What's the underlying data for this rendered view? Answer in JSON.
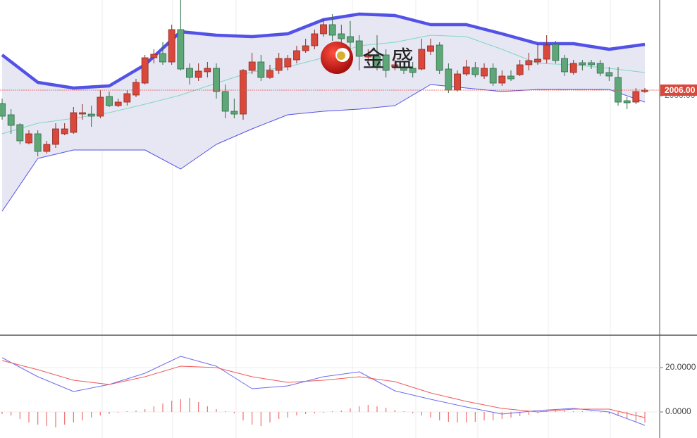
{
  "chart_data": [
    {
      "type": "candlestick",
      "up_color": "#d9483b",
      "down_color": "#5ea778",
      "up_border": "#8a2a22",
      "down_border": "#2f6b45",
      "open": [
        1991.75,
        1979.75,
        1969.25,
        1949.75,
        1959.5,
        1940.75,
        1948.25,
        1959.5,
        1961,
        1980.5,
        1980.5,
        1978.25,
        1999.25,
        1989.5,
        1993.25,
        2000.75,
        2013.5,
        2040.5,
        2045,
        2036,
        2070.5,
        2029.25,
        2019.5,
        2025.5,
        2029.25,
        2004.5,
        1983.5,
        1980.5,
        2027,
        2036,
        2019.5,
        2027,
        2030.75,
        2038.25,
        2048,
        2053.25,
        2066,
        2075.75,
        2066,
        2063,
        2058.5,
        2041.25,
        2042,
        2043.5,
        2030.75,
        2030.75,
        2029.25,
        2028.5,
        2047.25,
        2054,
        2028.5,
        2006,
        2023.25,
        2030,
        2021,
        2029.25,
        2013.5,
        2021,
        2022.5,
        2033,
        2036,
        2039,
        2054.75,
        2039.75,
        2024.75,
        2035.25,
        2035.25,
        2034.5,
        2024.75,
        2019.5,
        1994.75,
        1993.25,
        2004.5
      ],
      "high": [
        1997,
        1985.75,
        1970.75,
        1963.25,
        1963.25,
        1952,
        1970.75,
        1970.75,
        1988,
        1991,
        1989.5,
        2006,
        2004.5,
        1997,
        2006,
        2018,
        2043.5,
        2049.5,
        2057,
        2075.75,
        2102,
        2034.5,
        2034.5,
        2036,
        2034.5,
        2012,
        1997,
        2028.5,
        2045.75,
        2043.5,
        2033,
        2045.75,
        2043.5,
        2053.25,
        2060.75,
        2070.5,
        2081,
        2087,
        2075.75,
        2079.5,
        2064.5,
        2049.5,
        2064.5,
        2049.5,
        2038.25,
        2036,
        2036,
        2060.75,
        2060.75,
        2057,
        2034.5,
        2027,
        2038.25,
        2036,
        2034.5,
        2034.5,
        2027,
        2027,
        2038.25,
        2045.75,
        2055.5,
        2064.5,
        2058.5,
        2043.5,
        2038.25,
        2038.25,
        2038.25,
        2038.25,
        2030.75,
        2030.75,
        1998.5,
        2008.25,
        2008.25
      ],
      "low": [
        1974.5,
        1959.5,
        1948.25,
        1948.25,
        1935.5,
        1938.5,
        1944.5,
        1958,
        1959.5,
        1974.5,
        1967,
        1976,
        1988,
        1988,
        1989.5,
        1998.5,
        2012,
        2034.5,
        2033,
        2033,
        2027,
        2012,
        2015.75,
        2019.5,
        1997,
        1976,
        1976,
        1974.5,
        2023.25,
        2015.75,
        2018,
        2023.25,
        2027,
        2034.5,
        2045.75,
        2049.5,
        2063,
        2058.5,
        2053.25,
        2049.5,
        2027,
        2034.5,
        2027,
        2019.5,
        2027,
        2023.25,
        2019.5,
        2027,
        2043.5,
        2023.25,
        2003,
        2004.5,
        2021,
        2019.5,
        2018,
        2010.5,
        2010.5,
        2015.75,
        2021,
        2027,
        2033,
        2034.5,
        2034.5,
        2021,
        2022.5,
        2027,
        2028.5,
        2021,
        2015.75,
        1989.5,
        1985.75,
        1991,
        2003
      ],
      "close": [
        1978.25,
        1968.5,
        1952,
        1959.5,
        1940.75,
        1948.25,
        1964.75,
        1964.75,
        1982,
        1982,
        1978.25,
        1998.5,
        1989.5,
        1993.25,
        2002.25,
        2014.25,
        2040.5,
        2044.25,
        2036,
        2070.5,
        2028.5,
        2019.5,
        2026.25,
        2029.25,
        2004.5,
        1983.5,
        1980.5,
        2027,
        2036,
        2019.5,
        2027,
        2039.75,
        2039.75,
        2048,
        2053.25,
        2066,
        2075.75,
        2064.5,
        2060.75,
        2057,
        2042,
        2042.75,
        2030.75,
        2027,
        2033,
        2027,
        2024.75,
        2049.5,
        2053.25,
        2027,
        2006,
        2023.25,
        2030.75,
        2022.5,
        2029.25,
        2013.5,
        2021,
        2018,
        2033,
        2037.5,
        2039,
        2054,
        2037.5,
        2025.5,
        2034.5,
        2033,
        2033,
        2024,
        2021,
        1993.25,
        1992.5,
        2004.5,
        2006
      ],
      "band_fill": "#e7e7f4",
      "series": [
        {
          "color": "#5352e6",
          "width": 4.5,
          "x": [
            0,
            4,
            8,
            12,
            16,
            20,
            24,
            28,
            32,
            36,
            40,
            44,
            48,
            52,
            56,
            60,
            64,
            68,
            72
          ],
          "values": [
            2043.5,
            2014.25,
            2008.25,
            2010.5,
            2033,
            2068.25,
            2064.5,
            2063,
            2066,
            2081,
            2087,
            2085.5,
            2075.75,
            2075.75,
            2066,
            2055.5,
            2055.5,
            2049.5,
            2054.75
          ]
        },
        {
          "color": "#7fd6c0",
          "width": 1,
          "x": [
            0,
            4,
            8,
            12,
            16,
            20,
            24,
            28,
            32,
            36,
            40,
            44,
            48,
            52,
            56,
            60,
            64,
            68,
            72
          ],
          "values": [
            1959.5,
            1970.75,
            1976,
            1982,
            1991,
            2000.75,
            2013.5,
            2025.5,
            2030.75,
            2040.5,
            2053.25,
            2057,
            2064.5,
            2063,
            2049.5,
            2034.5,
            2033,
            2029.25,
            2024.75
          ]
        },
        {
          "color": "#5352e6",
          "width": 1,
          "x": [
            0,
            4,
            8,
            12,
            16,
            20,
            24,
            28,
            32,
            36,
            40,
            44,
            48,
            52,
            56,
            60,
            64,
            68,
            72
          ],
          "values": [
            1877,
            1933.25,
            1942.25,
            1942.25,
            1942.25,
            1922,
            1948.25,
            1964.75,
            1979.75,
            1983.5,
            1985.75,
            1989.5,
            2012,
            2008.25,
            2004.5,
            2006.75,
            2006.75,
            2006.75,
            1993.25
          ]
        }
      ],
      "ylim": [
        1745.75,
        2102
      ],
      "yticks": [
        {
          "value": 2000,
          "label": "2000.00"
        }
      ],
      "last_price": {
        "value": 2006,
        "label": "2006.00"
      },
      "watermark": "金 盛"
    },
    {
      "type": "macd",
      "ylim": [
        -11.75,
        34.6
      ],
      "yticks": [
        {
          "value": 0,
          "label": "0.0000"
        },
        {
          "value": 20,
          "label": "20.0000"
        }
      ],
      "grid": true,
      "series": [
        {
          "color": "#6b6bf0",
          "x": [
            0,
            4,
            8,
            12,
            16,
            20,
            24,
            28,
            32,
            36,
            40,
            44,
            48,
            52,
            56,
            60,
            64,
            68,
            72
          ],
          "values": [
            24.44,
            15.87,
            9.21,
            12.38,
            17.46,
            25.08,
            20.63,
            10.48,
            11.75,
            15.87,
            18.1,
            9.52,
            5.71,
            2.22,
            -0.95,
            0.63,
            1.59,
            0,
            -6.03
          ]
        },
        {
          "color": "#f05a5a",
          "x": [
            0,
            4,
            8,
            12,
            16,
            20,
            24,
            28,
            32,
            36,
            40,
            44,
            48,
            52,
            56,
            60,
            64,
            68,
            72
          ],
          "values": [
            23.17,
            19.05,
            14.29,
            12.38,
            15.87,
            20.63,
            20,
            15.87,
            13.33,
            14.29,
            15.87,
            13.65,
            8.57,
            4.76,
            1.59,
            0,
            1.27,
            1.27,
            -2.54
          ]
        }
      ],
      "histogram": {
        "color": "#f07070",
        "values": [
          -0.95,
          -1.59,
          -3.17,
          -4.76,
          -5.71,
          -6.35,
          -6.98,
          -5.71,
          -4.76,
          -3.81,
          -2.54,
          -1.59,
          -0.95,
          -0.32,
          0.32,
          0.63,
          1.27,
          2.54,
          3.81,
          5.08,
          5.71,
          6.35,
          4.44,
          2.54,
          1.27,
          0.32,
          -0.63,
          -3.81,
          -5.71,
          -6.35,
          -4.76,
          -3.17,
          -2.54,
          -1.59,
          -0.95,
          -0.63,
          -0.32,
          0.32,
          0.63,
          1.59,
          2.54,
          3.17,
          2.54,
          1.9,
          0.95,
          0.32,
          -0.63,
          -1.59,
          -2.54,
          -3.81,
          -4.44,
          -4.76,
          -4.76,
          -4.44,
          -3.81,
          -3.81,
          -3.17,
          -2.54,
          -1.9,
          -1.27,
          -0.63,
          0.32,
          0.63,
          0.63,
          0.32,
          0.32,
          0.16,
          -0.32,
          -0.95,
          -1.9,
          -3.17,
          -4.44,
          -4.76
        ]
      }
    }
  ]
}
